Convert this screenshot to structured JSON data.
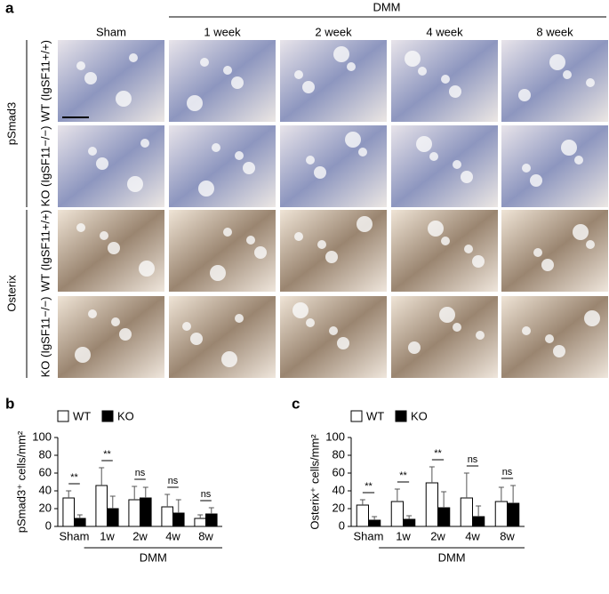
{
  "panel_labels": [
    "a",
    "b",
    "c"
  ],
  "figure_a": {
    "group_header": "DMM",
    "columns": [
      "Sham",
      "1 week",
      "2 week",
      "4 week",
      "8 week"
    ],
    "row_groups": [
      "pSmad3",
      "Osterix"
    ],
    "rows": [
      "WT (IgSF11+/+)",
      "KO (IgSF11−/−)",
      "WT (IgSF11+/+)",
      "KO (IgSF11−/−)"
    ]
  },
  "chart_data": [
    {
      "type": "bar",
      "y_label": "pSmad3⁺ cells/mm²",
      "x_group_label": "DMM",
      "categories": [
        "Sham",
        "1w",
        "2w",
        "4w",
        "8w"
      ],
      "series": [
        {
          "name": "WT",
          "color": "#ffffff",
          "values": [
            32,
            46,
            30,
            22,
            9
          ],
          "errors": [
            8,
            20,
            15,
            14,
            4
          ]
        },
        {
          "name": "KO",
          "color": "#000000",
          "values": [
            9,
            20,
            32,
            15,
            14
          ],
          "errors": [
            4,
            14,
            12,
            15,
            7
          ]
        }
      ],
      "significance": [
        "**",
        "**",
        "ns",
        "ns",
        "ns"
      ],
      "ylim": [
        0,
        100
      ],
      "yticks": [
        0,
        20,
        40,
        60,
        80,
        100
      ]
    },
    {
      "type": "bar",
      "y_label": "Osterix⁺ cells/mm²",
      "x_group_label": "DMM",
      "categories": [
        "Sham",
        "1w",
        "2w",
        "4w",
        "8w"
      ],
      "series": [
        {
          "name": "WT",
          "color": "#ffffff",
          "values": [
            24,
            28,
            49,
            32,
            28
          ],
          "errors": [
            6,
            14,
            18,
            28,
            16
          ]
        },
        {
          "name": "KO",
          "color": "#000000",
          "values": [
            7,
            8,
            21,
            11,
            26
          ],
          "errors": [
            4,
            4,
            18,
            12,
            20
          ]
        }
      ],
      "significance": [
        "**",
        "**",
        "**",
        "ns",
        "ns"
      ],
      "ylim": [
        0,
        100
      ],
      "yticks": [
        0,
        20,
        40,
        60,
        80,
        100
      ]
    }
  ]
}
